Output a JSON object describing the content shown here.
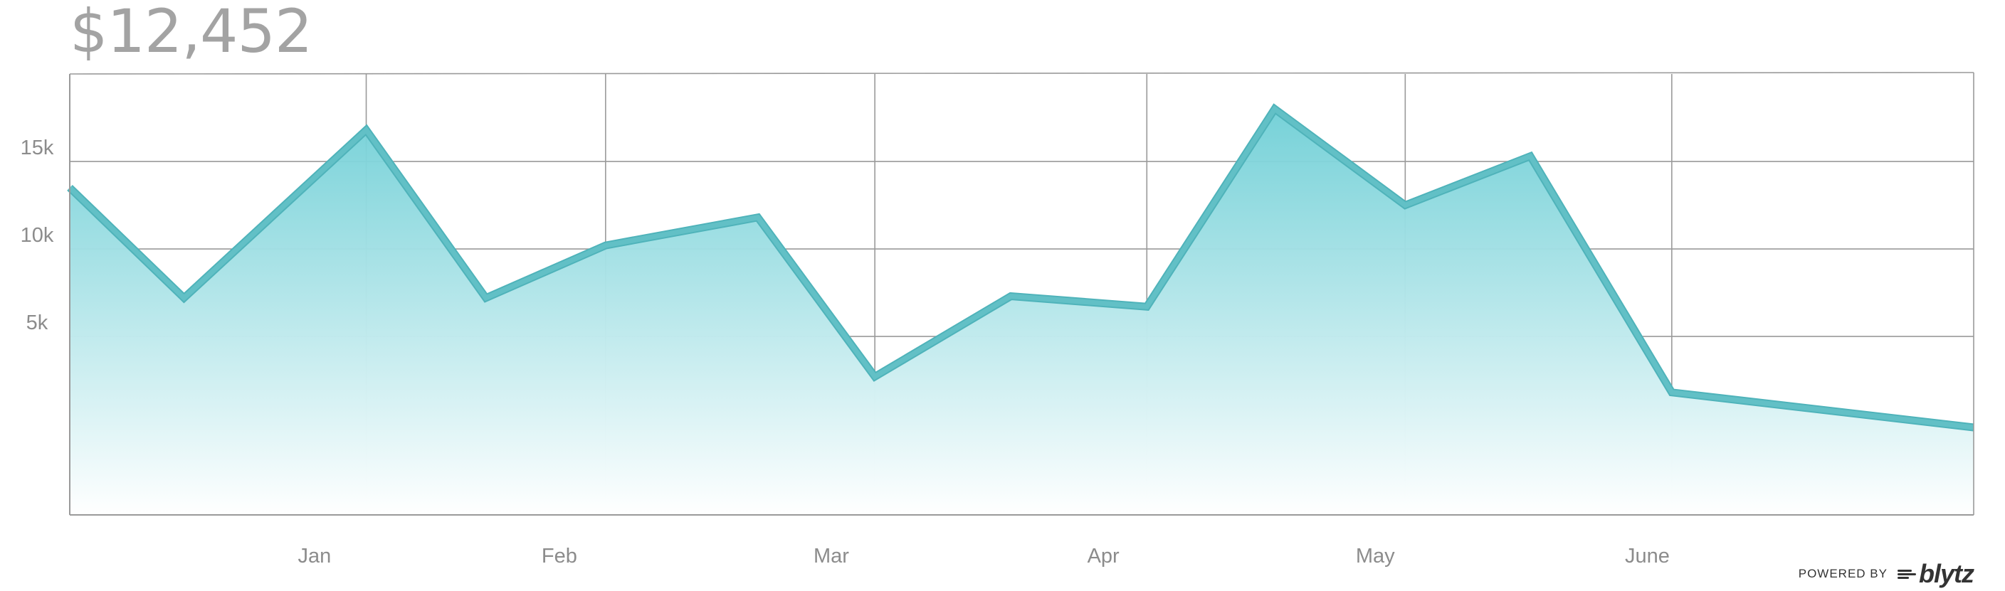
{
  "headline": "$12,452",
  "powered_by": {
    "label": "POWERED BY",
    "brand": "blytz"
  },
  "colors": {
    "line": "#62c0c6",
    "area_top": "#6fcfd6",
    "area_bottom": "#ffffff",
    "grid": "#9a9a9a",
    "text": "#8c8c8c"
  },
  "chart_data": {
    "type": "area",
    "title": "",
    "xlabel": "",
    "ylabel": "",
    "ylim": [
      -5200,
      20000
    ],
    "yticks": [
      {
        "value": 5000,
        "label": "5k"
      },
      {
        "value": 10000,
        "label": "10k"
      },
      {
        "value": 15000,
        "label": "15k"
      }
    ],
    "xlim": [
      0,
      7
    ],
    "x_labels": [
      {
        "x": 0.9,
        "label": "Jan"
      },
      {
        "x": 1.8,
        "label": "Feb"
      },
      {
        "x": 2.8,
        "label": "Mar"
      },
      {
        "x": 3.8,
        "label": "Apr"
      },
      {
        "x": 4.8,
        "label": "May"
      },
      {
        "x": 5.8,
        "label": "June"
      }
    ],
    "vertical_gridlines": [
      1.09,
      1.97,
      2.96,
      3.96,
      4.91,
      5.89
    ],
    "grid": true,
    "legend": "none",
    "series": [
      {
        "x": [
          0.0,
          0.42,
          1.09,
          1.53,
          1.97,
          2.53,
          2.96,
          3.46,
          3.96,
          4.43,
          4.91,
          5.37,
          5.89,
          7.0
        ],
        "values": [
          13500,
          7200,
          16800,
          7200,
          10200,
          11800,
          2700,
          7300,
          6700,
          18000,
          12500,
          15300,
          1800,
          -200
        ]
      }
    ]
  }
}
